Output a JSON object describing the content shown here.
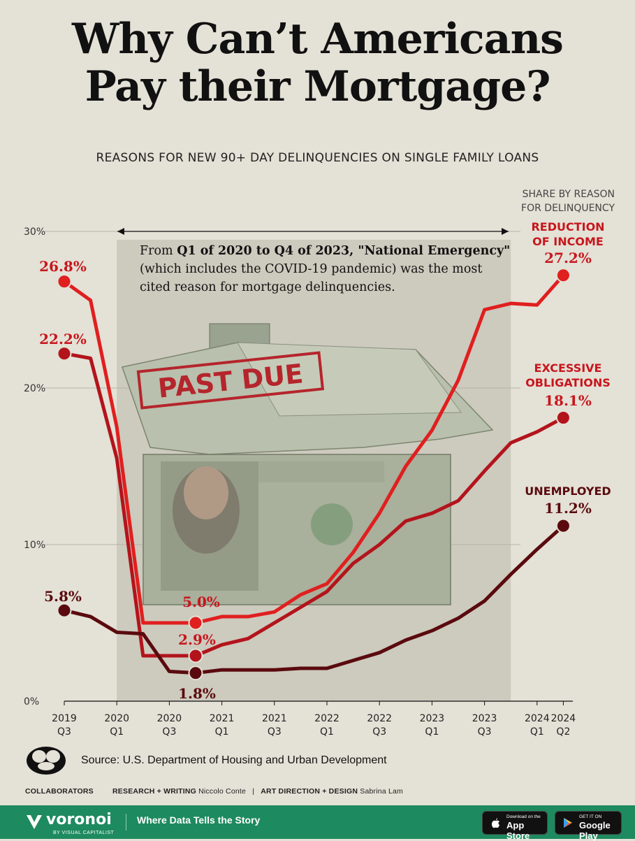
{
  "title_line1": "Why Can’t Americans",
  "title_line2": "Pay their Mortgage?",
  "subtitle": "REASONS FOR NEW 90+ DAY DELINQUENCIES ON SINGLE FAMILY LOANS",
  "annotation": {
    "prefix": "From ",
    "bold1": "Q1 of 2020 to Q4 of 2023, \"National Emergency\"",
    "rest_line2": "(which includes the COVID-19 pandemic) was the most",
    "rest_line3": "cited reason for mortgage delinquencies."
  },
  "share_label": [
    "SHARE BY REASON",
    "FOR DELINQUENCY"
  ],
  "image_text": "PAST DUE",
  "source": "Source: U.S. Department of Housing and Urban Development",
  "credits": {
    "research_label": "RESEARCH + WRITING",
    "research_name": "Niccolo Conte",
    "design_label": "ART DIRECTION + DESIGN",
    "design_name": "Sabrina Lam",
    "collab_label": "COLLABORATORS"
  },
  "brand": {
    "name": "voronoi",
    "sub": "BY VISUAL CAPITALIST",
    "tagline": "Where Data Tells the Story",
    "appstore_small": "Download on the",
    "appstore_big": "App Store",
    "googleplay_small": "GET IT ON",
    "googleplay_big": "Google Play"
  },
  "colors": {
    "reduction_of_income": "#e01f1f",
    "excessive_obligations": "#b3141c",
    "unemployed": "#5a0a0e",
    "label_red": "#c8161d",
    "label_dark": "#5a0a0e",
    "highlight_band": "#c9c6ba",
    "background": "#e4e1d6",
    "bottom_bar": "#1e8a5f"
  },
  "chart_data": {
    "type": "line",
    "x": [
      "2019 Q3",
      "2019 Q4",
      "2020 Q1",
      "2020 Q2",
      "2020 Q3",
      "2020 Q4",
      "2021 Q1",
      "2021 Q2",
      "2021 Q3",
      "2021 Q4",
      "2022 Q1",
      "2022 Q2",
      "2022 Q3",
      "2022 Q4",
      "2023 Q1",
      "2023 Q2",
      "2023 Q3",
      "2023 Q4",
      "2024 Q1",
      "2024 Q2"
    ],
    "xticks": [
      {
        "x": "2019 Q3",
        "line1": "2019",
        "line2": "Q3"
      },
      {
        "x": "2020 Q1",
        "line1": "2020",
        "line2": "Q1"
      },
      {
        "x": "2020 Q3",
        "line1": "2020",
        "line2": "Q3"
      },
      {
        "x": "2021 Q1",
        "line1": "2021",
        "line2": "Q1"
      },
      {
        "x": "2021 Q3",
        "line1": "2021",
        "line2": "Q3"
      },
      {
        "x": "2022 Q1",
        "line1": "2022",
        "line2": "Q1"
      },
      {
        "x": "2022 Q3",
        "line1": "2022",
        "line2": "Q3"
      },
      {
        "x": "2023 Q1",
        "line1": "2023",
        "line2": "Q1"
      },
      {
        "x": "2023 Q3",
        "line1": "2023",
        "line2": "Q3"
      },
      {
        "x": "2024 Q1",
        "line1": "2024",
        "line2": "Q1"
      },
      {
        "x": "2024 Q2",
        "line1": "2024",
        "line2": "Q2"
      }
    ],
    "yticks": [
      {
        "v": 0,
        "label": "0%"
      },
      {
        "v": 10,
        "label": "10%"
      },
      {
        "v": 20,
        "label": "20%"
      },
      {
        "v": 30,
        "label": "30%"
      }
    ],
    "ylim": [
      0,
      30
    ],
    "ylabel": "",
    "highlight_range": [
      "2020 Q1",
      "2023 Q4"
    ],
    "series": [
      {
        "name": "REDUCTION OF INCOME",
        "name_lines": [
          "REDUCTION",
          "OF INCOME"
        ],
        "color_key": "reduction_of_income",
        "values": [
          26.8,
          25.6,
          17.5,
          5.0,
          5.0,
          5.0,
          5.4,
          5.4,
          5.7,
          6.8,
          7.5,
          9.5,
          12.0,
          15.0,
          17.3,
          20.5,
          25.0,
          25.4,
          25.3,
          27.2
        ],
        "start_label": "26.8%",
        "end_label": "27.2%",
        "low_label": "5.0%",
        "low_x": "2020 Q4"
      },
      {
        "name": "EXCESSIVE OBLIGATIONS",
        "name_lines": [
          "EXCESSIVE",
          "OBLIGATIONS"
        ],
        "color_key": "excessive_obligations",
        "values": [
          22.2,
          21.9,
          15.5,
          2.9,
          2.9,
          2.9,
          3.6,
          4.0,
          5.0,
          6.0,
          7.0,
          8.8,
          10.0,
          11.5,
          12.0,
          12.8,
          14.7,
          16.5,
          17.2,
          18.1
        ],
        "start_label": "22.2%",
        "end_label": "18.1%",
        "low_label": "2.9%",
        "low_x": "2020 Q4"
      },
      {
        "name": "UNEMPLOYED",
        "name_lines": [
          "UNEMPLOYED"
        ],
        "color_key": "unemployed",
        "values": [
          5.8,
          5.4,
          4.4,
          4.3,
          1.9,
          1.8,
          2.0,
          2.0,
          2.0,
          2.1,
          2.1,
          2.6,
          3.1,
          3.9,
          4.5,
          5.3,
          6.4,
          8.1,
          9.7,
          11.2
        ],
        "start_label": "5.8%",
        "end_label": "11.2%",
        "low_label": "1.8%",
        "low_x": "2020 Q4"
      }
    ]
  }
}
